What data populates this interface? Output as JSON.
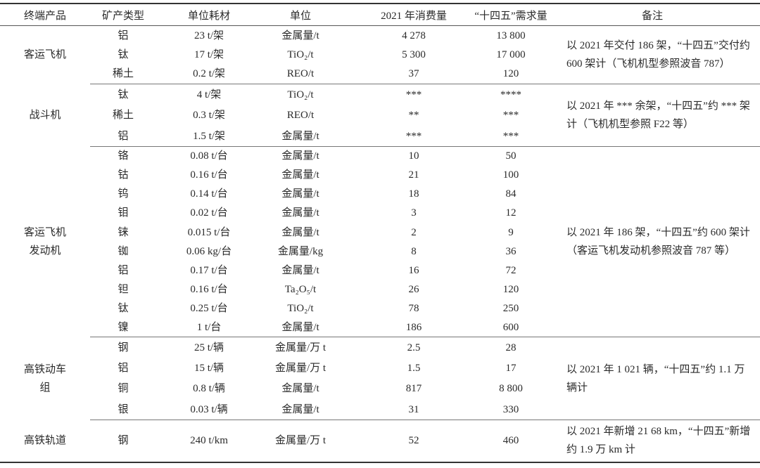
{
  "headers": [
    "终端产品",
    "矿产类型",
    "单位耗材",
    "单位",
    "2021 年消费量",
    "“十四五”需求量",
    "备注"
  ],
  "groups": [
    {
      "product": "客运飞机",
      "remark": "以 2021 年交付 186 架，“十四五”交付约 600 架计（飞机机型参照波音 787）",
      "rows": [
        {
          "mineral": "铝",
          "consumption": "23 t/架",
          "unit": "金属量/t",
          "y2021": "4 278",
          "fyp": "13 800"
        },
        {
          "mineral": "钛",
          "consumption": "17 t/架",
          "unit": "TiO₂/t",
          "y2021": "5 300",
          "fyp": "17 000"
        },
        {
          "mineral": "稀土",
          "consumption": "0.2 t/架",
          "unit": "REO/t",
          "y2021": "37",
          "fyp": "120"
        }
      ]
    },
    {
      "product": "战斗机",
      "remark": "以 2021 年 *** 余架，“十四五”约 *** 架计（飞机机型参照 F22 等）",
      "rows": [
        {
          "mineral": "钛",
          "consumption": "4 t/架",
          "unit": "TiO₂/t",
          "y2021": "***",
          "fyp": "****"
        },
        {
          "mineral": "稀土",
          "consumption": "0.3 t/架",
          "unit": "REO/t",
          "y2021": "**",
          "fyp": "***"
        },
        {
          "mineral": "铝",
          "consumption": "1.5 t/架",
          "unit": "金属量/t",
          "y2021": "***",
          "fyp": "***"
        }
      ]
    },
    {
      "product": "客运飞机发动机",
      "remark": "以 2021 年 186 架，“十四五”约 600 架计（客运飞机发动机参照波音 787 等）",
      "rows": [
        {
          "mineral": "铬",
          "consumption": "0.08 t/台",
          "unit": "金属量/t",
          "y2021": "10",
          "fyp": "50"
        },
        {
          "mineral": "钴",
          "consumption": "0.16 t/台",
          "unit": "金属量/t",
          "y2021": "21",
          "fyp": "100"
        },
        {
          "mineral": "钨",
          "consumption": "0.14 t/台",
          "unit": "金属量/t",
          "y2021": "18",
          "fyp": "84"
        },
        {
          "mineral": "钼",
          "consumption": "0.02 t/台",
          "unit": "金属量/t",
          "y2021": "3",
          "fyp": "12"
        },
        {
          "mineral": "铼",
          "consumption": "0.015 t/台",
          "unit": "金属量/t",
          "y2021": "2",
          "fyp": "9"
        },
        {
          "mineral": "铷",
          "consumption": "0.06 kg/台",
          "unit": "金属量/kg",
          "y2021": "8",
          "fyp": "36"
        },
        {
          "mineral": "铝",
          "consumption": "0.17 t/台",
          "unit": "金属量/t",
          "y2021": "16",
          "fyp": "72"
        },
        {
          "mineral": "钽",
          "consumption": "0.16 t/台",
          "unit": "Ta₂O₅/t",
          "y2021": "26",
          "fyp": "120"
        },
        {
          "mineral": "钛",
          "consumption": "0.25 t/台",
          "unit": "TiO₂/t",
          "y2021": "78",
          "fyp": "250"
        },
        {
          "mineral": "镍",
          "consumption": "1 t/台",
          "unit": "金属量/t",
          "y2021": "186",
          "fyp": "600"
        }
      ]
    },
    {
      "product": "高铁动车组",
      "remark": "以 2021 年 1 021 辆，“十四五”约 1.1 万辆计",
      "rows": [
        {
          "mineral": "钢",
          "consumption": "25 t/辆",
          "unit": "金属量/万 t",
          "y2021": "2.5",
          "fyp": "28"
        },
        {
          "mineral": "铝",
          "consumption": "15 t/辆",
          "unit": "金属量/万 t",
          "y2021": "1.5",
          "fyp": "17"
        },
        {
          "mineral": "铜",
          "consumption": "0.8 t/辆",
          "unit": "金属量/t",
          "y2021": "817",
          "fyp": "8 800"
        },
        {
          "mineral": "银",
          "consumption": "0.03 t/辆",
          "unit": "金属量/t",
          "y2021": "31",
          "fyp": "330"
        }
      ]
    },
    {
      "product": "高铁轨道",
      "remark": "以 2021 年新增 21 68 km，“十四五”新增约 1.9 万 km 计",
      "rows": [
        {
          "mineral": "钢",
          "consumption": "240 t/km",
          "unit": "金属量/万 t",
          "y2021": "52",
          "fyp": "460"
        }
      ]
    }
  ]
}
